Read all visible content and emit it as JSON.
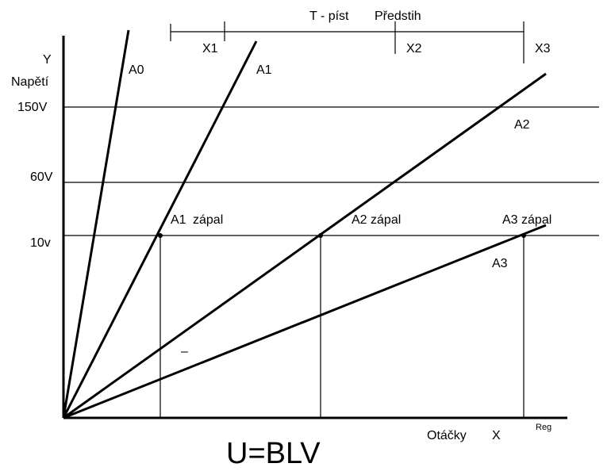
{
  "axes": {
    "y_label": "Y",
    "y_name": "Napětí",
    "x_name": "Otáčky",
    "x_label": "X",
    "x_sub": "Reg"
  },
  "levels": [
    "150V",
    "60V",
    "10v"
  ],
  "lines": [
    "A0",
    "A1",
    "A2",
    "A3"
  ],
  "top_scale": {
    "left": "T - píst",
    "right": "Předstih",
    "marks": [
      "X1",
      "X2",
      "X3"
    ]
  },
  "ignition": [
    {
      "name": "A1",
      "label": "zápal"
    },
    {
      "name": "A2 zápal"
    },
    {
      "name": "A3 zápal"
    }
  ],
  "stray_mark": "–",
  "formula": "U=BLV"
}
